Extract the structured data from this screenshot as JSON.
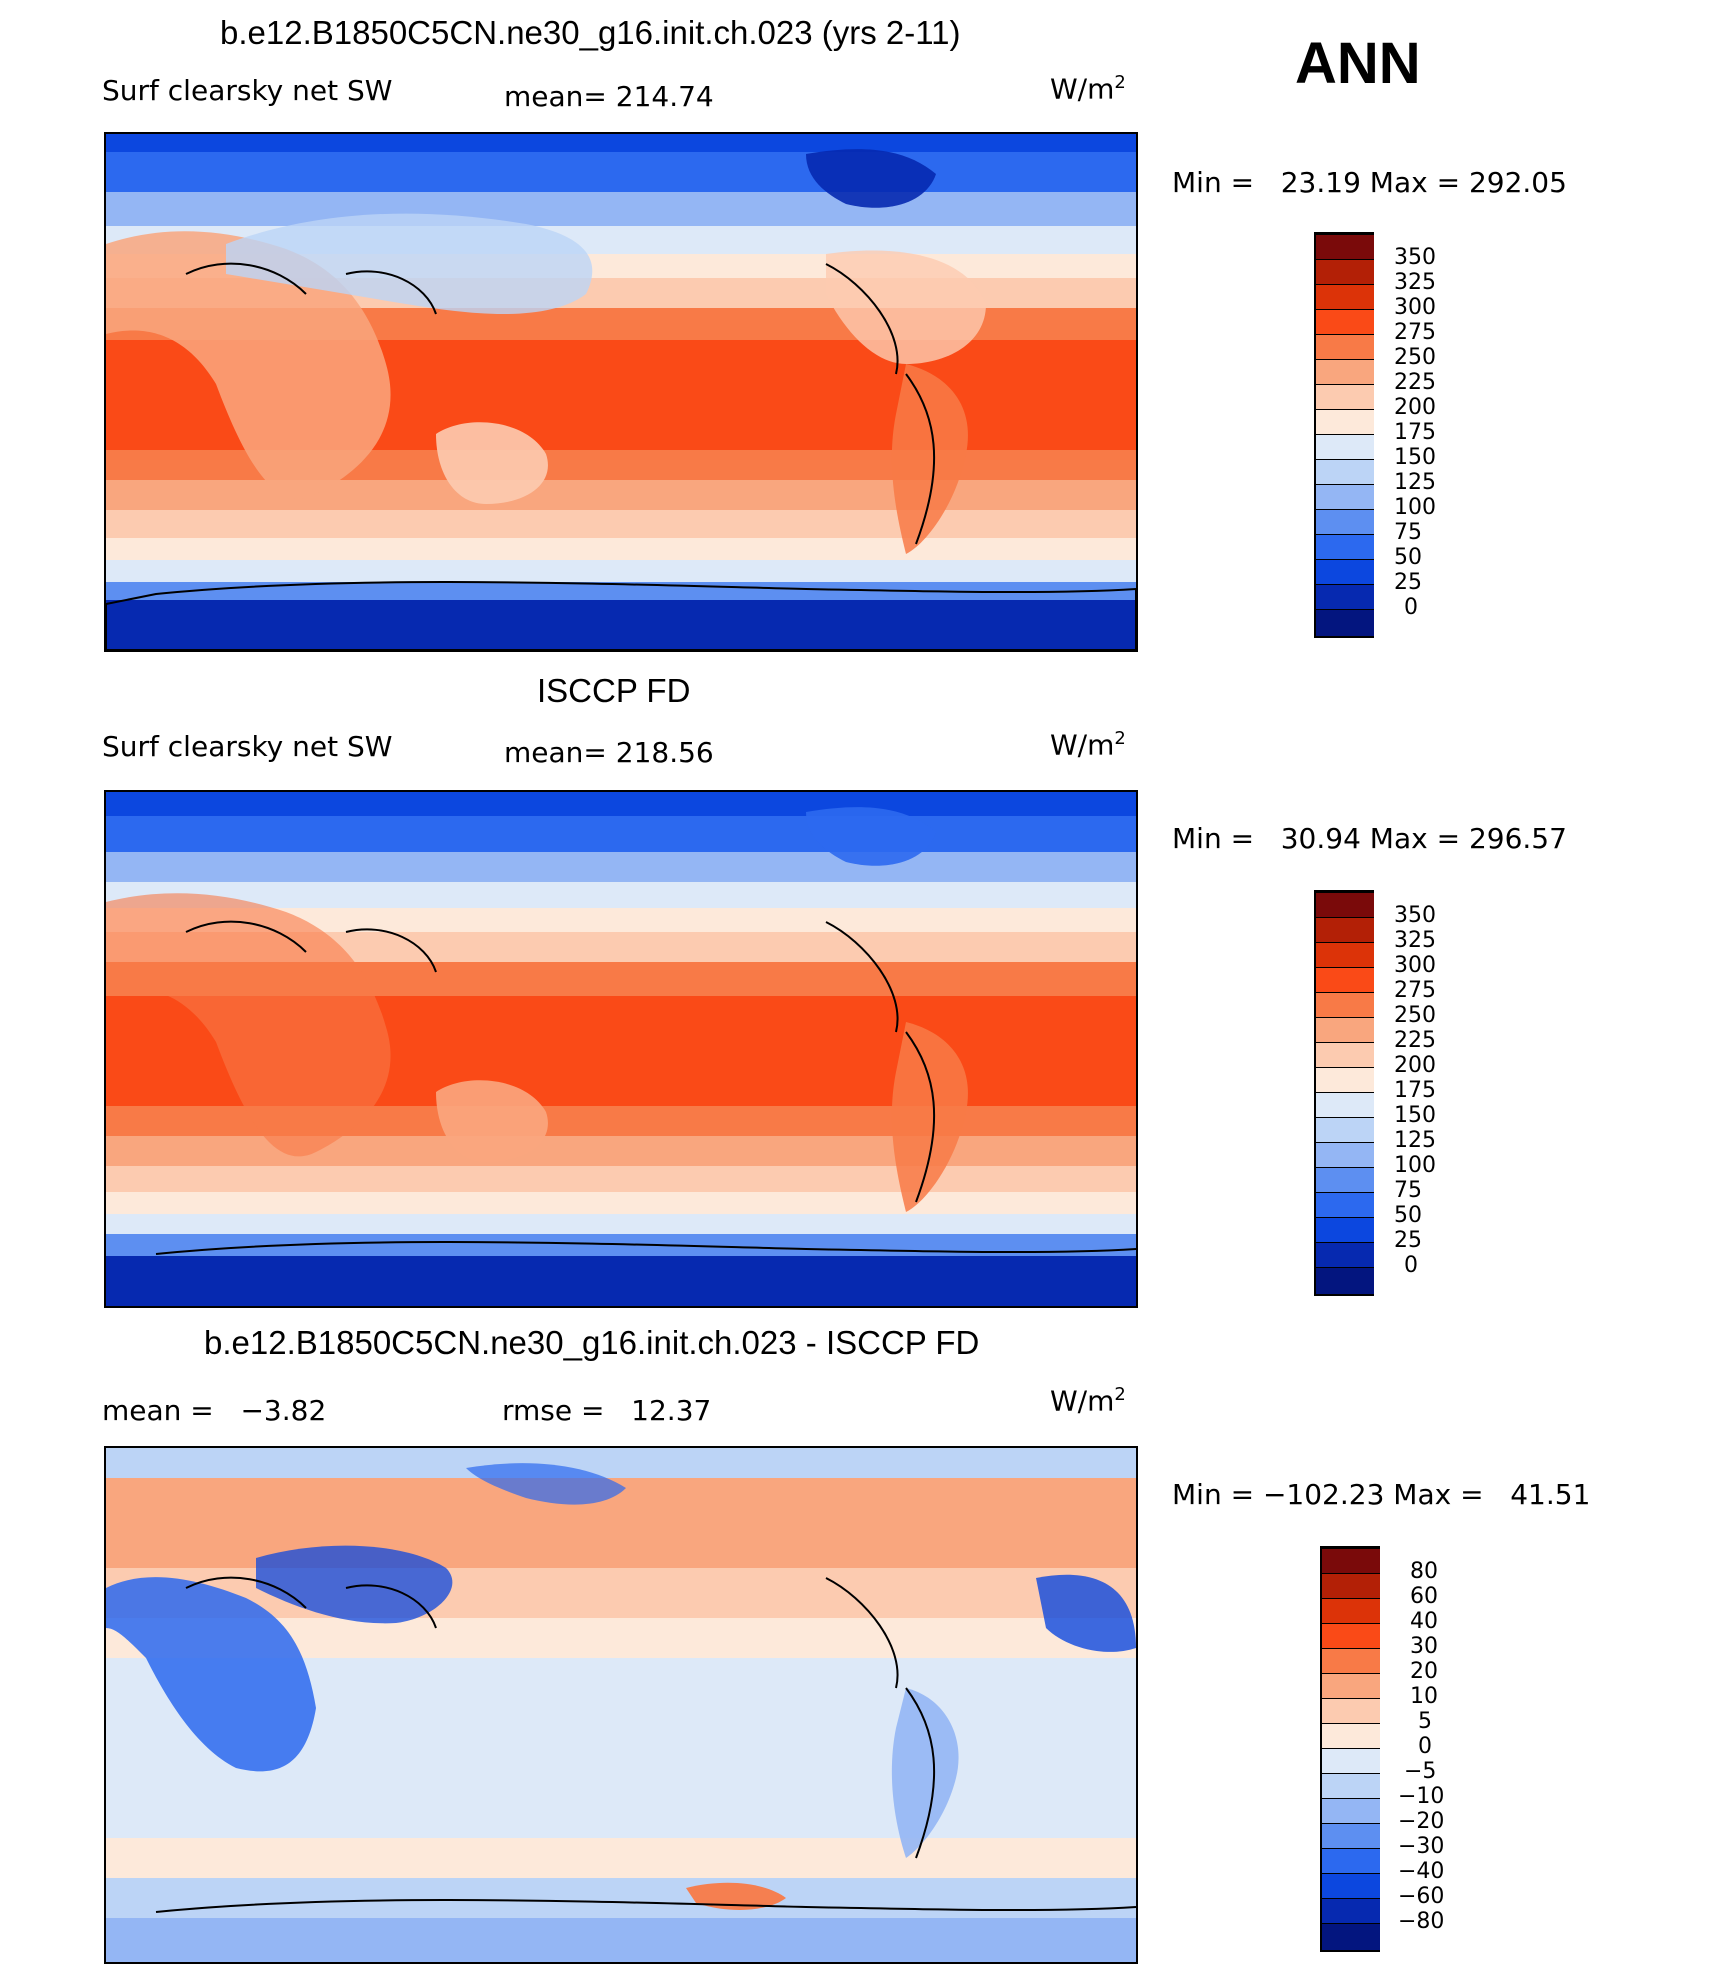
{
  "season": "ANN",
  "panels": [
    {
      "title": "b.e12.B1850C5CN.ne30_g16.init.ch.023 (yrs 2-11)",
      "left_label": "Surf clearsky net SW",
      "center_label": "mean= 214.74",
      "units": "W/m",
      "units_sup": "2",
      "minmax": "Min =   23.19 Max = 292.05"
    },
    {
      "title": "ISCCP FD",
      "left_label": "Surf clearsky net SW",
      "center_label": "mean= 218.56",
      "units": "W/m",
      "units_sup": "2",
      "minmax": "Min =   30.94 Max = 296.57"
    },
    {
      "title": "b.e12.B1850C5CN.ne30_g16.init.ch.023 - ISCCP FD",
      "left_label": "mean =   −3.82",
      "center_label": "rmse =   12.37",
      "units": "W/m",
      "units_sup": "2",
      "minmax": "Min = −102.23 Max =   41.51"
    }
  ],
  "colorbar_abs": {
    "labels": [
      "350",
      "325",
      "300",
      "275",
      "250",
      "225",
      "200",
      "175",
      "150",
      "125",
      "100",
      "75",
      "50",
      "25",
      "0"
    ],
    "colors": [
      "#7a0a0a",
      "#b32006",
      "#dc3308",
      "#fa4a17",
      "#f87a47",
      "#f9a67e",
      "#fccbb0",
      "#fde9da",
      "#dde9f8",
      "#bcd4f6",
      "#94b6f4",
      "#5d8ff1",
      "#2c69ef",
      "#0c47df",
      "#0629b0",
      "#03157f"
    ]
  },
  "colorbar_diff": {
    "labels": [
      "80",
      "60",
      "40",
      "30",
      "20",
      "10",
      "5",
      "0",
      "−5",
      "−10",
      "−20",
      "−30",
      "−40",
      "−60",
      "−80"
    ],
    "colors": [
      "#7a0a0a",
      "#b32006",
      "#dc3308",
      "#fa4a17",
      "#f87a47",
      "#f9a67e",
      "#fccbb0",
      "#fde9da",
      "#dde9f8",
      "#bcd4f6",
      "#94b6f4",
      "#5d8ff1",
      "#2c69ef",
      "#0c47df",
      "#0629b0",
      "#03157f"
    ]
  }
}
